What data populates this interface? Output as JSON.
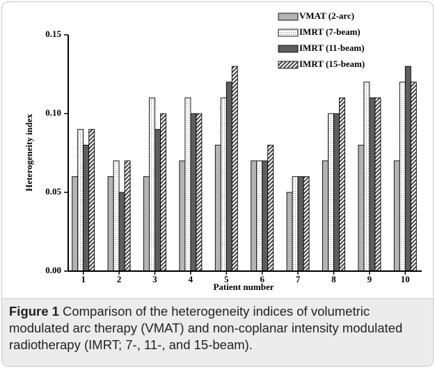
{
  "chart_data": {
    "type": "bar",
    "y_label": "Heterogeneity index",
    "x_label": "Patient number",
    "categories": [
      "1",
      "2",
      "3",
      "4",
      "5",
      "6",
      "7",
      "8",
      "9",
      "10"
    ],
    "series": [
      {
        "name": "VMAT (2-arc)",
        "color": "#b4b4b4",
        "values": [
          0.06,
          0.06,
          0.06,
          0.07,
          0.08,
          0.07,
          0.05,
          0.07,
          0.08,
          0.07
        ]
      },
      {
        "name": "IMRT (7-beam)",
        "color": "#ffffff",
        "pattern": "dots",
        "values": [
          0.09,
          0.07,
          0.11,
          0.11,
          0.11,
          0.07,
          0.06,
          0.1,
          0.12,
          0.12
        ]
      },
      {
        "name": "IMRT (11-beam)",
        "color": "#5e5e5e",
        "values": [
          0.08,
          0.05,
          0.09,
          0.1,
          0.12,
          0.07,
          0.06,
          0.1,
          0.11,
          0.13
        ]
      },
      {
        "name": "IMRT (15-beam)",
        "color": "#ffffff",
        "pattern": "hatch",
        "values": [
          0.09,
          0.07,
          0.1,
          0.1,
          0.13,
          0.08,
          0.06,
          0.11,
          0.11,
          0.12
        ]
      }
    ],
    "ylim": [
      0,
      0.15
    ],
    "yticks": [
      {
        "value": 0,
        "label": "0.00"
      },
      {
        "value": 0.05,
        "label": "0.05"
      },
      {
        "value": 0.1,
        "label": "0.10"
      },
      {
        "value": 0.15,
        "label": "0.15"
      }
    ],
    "grid": false,
    "legend": "top-right"
  },
  "caption_label": "Figure 1",
  "caption": "Comparison of the heterogeneity indices of volumetric modulated arc therapy (VMAT) and non-coplanar intensity modulated radiotherapy (IMRT; 7-, 11-, and 15-beam)."
}
